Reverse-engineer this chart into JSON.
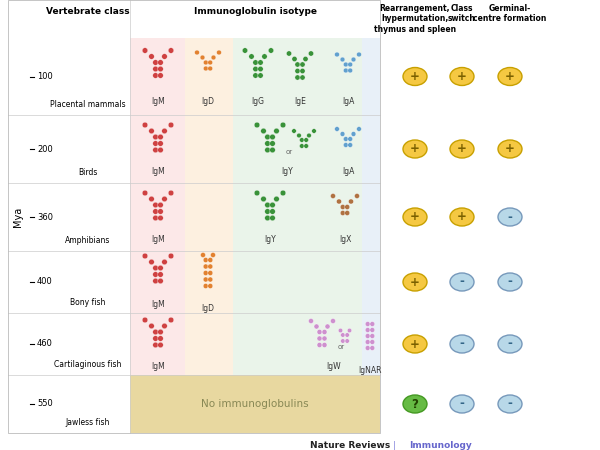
{
  "bg_color": "#ffffff",
  "mya_label": "Mya",
  "col_header_vertebrate": "Vertebrate class",
  "col_header_ig": "Immunoglobulin isotype",
  "col_header_rear": "Rearrangement,\nhypermutation,\nthymus and spleen",
  "col_header_class": "Class\nswitch",
  "col_header_germinal": "Germinal-\ncentre formation",
  "footer_left": "Nature Reviews",
  "footer_pipe": "|",
  "footer_right": "Immunology",
  "rows": [
    {
      "name": "Placental mammals",
      "mya": 100,
      "isotypes": [
        "IgM",
        "IgD",
        "IgG",
        "IgE",
        "IgA"
      ],
      "ig_colors": [
        "#cc3333",
        "#e07820",
        "#2a8a2a",
        "#2a8a2a",
        "#5599cc"
      ],
      "rearrangement": "+",
      "rear_color": "#f0c040",
      "class_switch": "+",
      "class_color": "#f0c040",
      "germinal": "+",
      "germinal_color": "#f0c040"
    },
    {
      "name": "Birds",
      "mya": 200,
      "isotypes": [
        "IgM",
        "IgY",
        "IgA"
      ],
      "ig_colors": [
        "#cc3333",
        "#2a8a2a",
        "#5599cc"
      ],
      "rearrangement": "+",
      "rear_color": "#f0c040",
      "class_switch": "+",
      "class_color": "#f0c040",
      "germinal": "+",
      "germinal_color": "#f0c040"
    },
    {
      "name": "Amphibians",
      "mya": 360,
      "isotypes": [
        "IgM",
        "IgY",
        "IgX"
      ],
      "ig_colors": [
        "#cc3333",
        "#2a8a2a",
        "#aa6633"
      ],
      "rearrangement": "+",
      "rear_color": "#f0c040",
      "class_switch": "+",
      "class_color": "#f0c040",
      "germinal": "-",
      "germinal_color": "#aaccdd"
    },
    {
      "name": "Bony fish",
      "mya": 400,
      "isotypes": [
        "IgM",
        "IgD"
      ],
      "ig_colors": [
        "#cc3333",
        "#e07820"
      ],
      "rearrangement": "+",
      "rear_color": "#f0c040",
      "class_switch": "-",
      "class_color": "#aaccdd",
      "germinal": "-",
      "germinal_color": "#aaccdd"
    },
    {
      "name": "Cartilaginous fish",
      "mya": 460,
      "isotypes": [
        "IgM",
        "IgW",
        "IgNAR"
      ],
      "ig_colors": [
        "#cc3333",
        "#cc88cc",
        "#cc88cc"
      ],
      "rearrangement": "+",
      "rear_color": "#f0c040",
      "class_switch": "-",
      "class_color": "#aaccdd",
      "germinal": "-",
      "germinal_color": "#aaccdd"
    },
    {
      "name": "Jawless fish",
      "mya": 550,
      "isotypes": [],
      "ig_colors": [],
      "no_ig_text": "No immunoglobulins",
      "rearrangement": "?",
      "rear_color": "#66bb44",
      "class_switch": "-",
      "class_color": "#aaccdd",
      "germinal": "-",
      "germinal_color": "#aaccdd"
    }
  ],
  "band_colors": {
    "red": "#fce8e8",
    "orange": "#fdf0e0",
    "green": "#eaf4ea",
    "blue": "#e8f0f8"
  },
  "jawless_bg": "#e8d8a0"
}
